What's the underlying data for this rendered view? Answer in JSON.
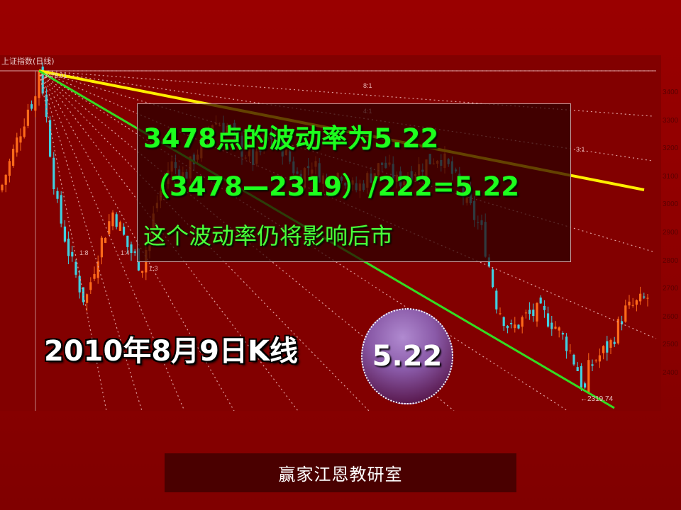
{
  "slide": {
    "index_title": "上证指数(日线)",
    "text_box": {
      "line1": "3478点的波动率为5.22",
      "line2": "（3478—2319）/222=5.22",
      "line3": "这个波动率仍将影响后市"
    },
    "kline_date": "2010年8月9日K线",
    "rate_badge": "5.22",
    "footer": "赢家江恩教研室"
  },
  "chart_data": {
    "type": "candlestick",
    "title": "上证指数(日线)",
    "y_ticks": [
      "3400",
      "3300",
      "3200",
      "3100",
      "3000",
      "2900",
      "2800",
      "2700",
      "2600",
      "2500",
      "2400"
    ],
    "ylim": [
      2300,
      3500
    ],
    "high_label": "3478.91",
    "low_label": "←2319.74",
    "fan_labels": [
      "8:1",
      "4:1",
      "3:1",
      "1:8",
      "1:4",
      "1:3"
    ],
    "approx_close_path": [
      3050,
      3200,
      3350,
      3420,
      3000,
      2800,
      2650,
      2850,
      2980,
      2850,
      2780,
      3000,
      3150,
      3100,
      3200,
      3300,
      3280,
      3200,
      3150,
      3250,
      3200,
      3100,
      3150,
      3080,
      3120,
      3050,
      3100,
      3150,
      3080,
      3120,
      3150,
      3180,
      3100,
      3000,
      2900,
      2650,
      2550,
      2600,
      2620,
      2580,
      2500,
      2380,
      2450,
      2500,
      2620,
      2650,
      2680
    ],
    "peak": 3478,
    "trough": 2319,
    "colors": {
      "up": "#ff6a1a",
      "down": "#40d0e0",
      "fan_highlight": "#ffee00",
      "trend_line": "#33dd22",
      "fan_dotted": "#e0a0a0"
    }
  }
}
